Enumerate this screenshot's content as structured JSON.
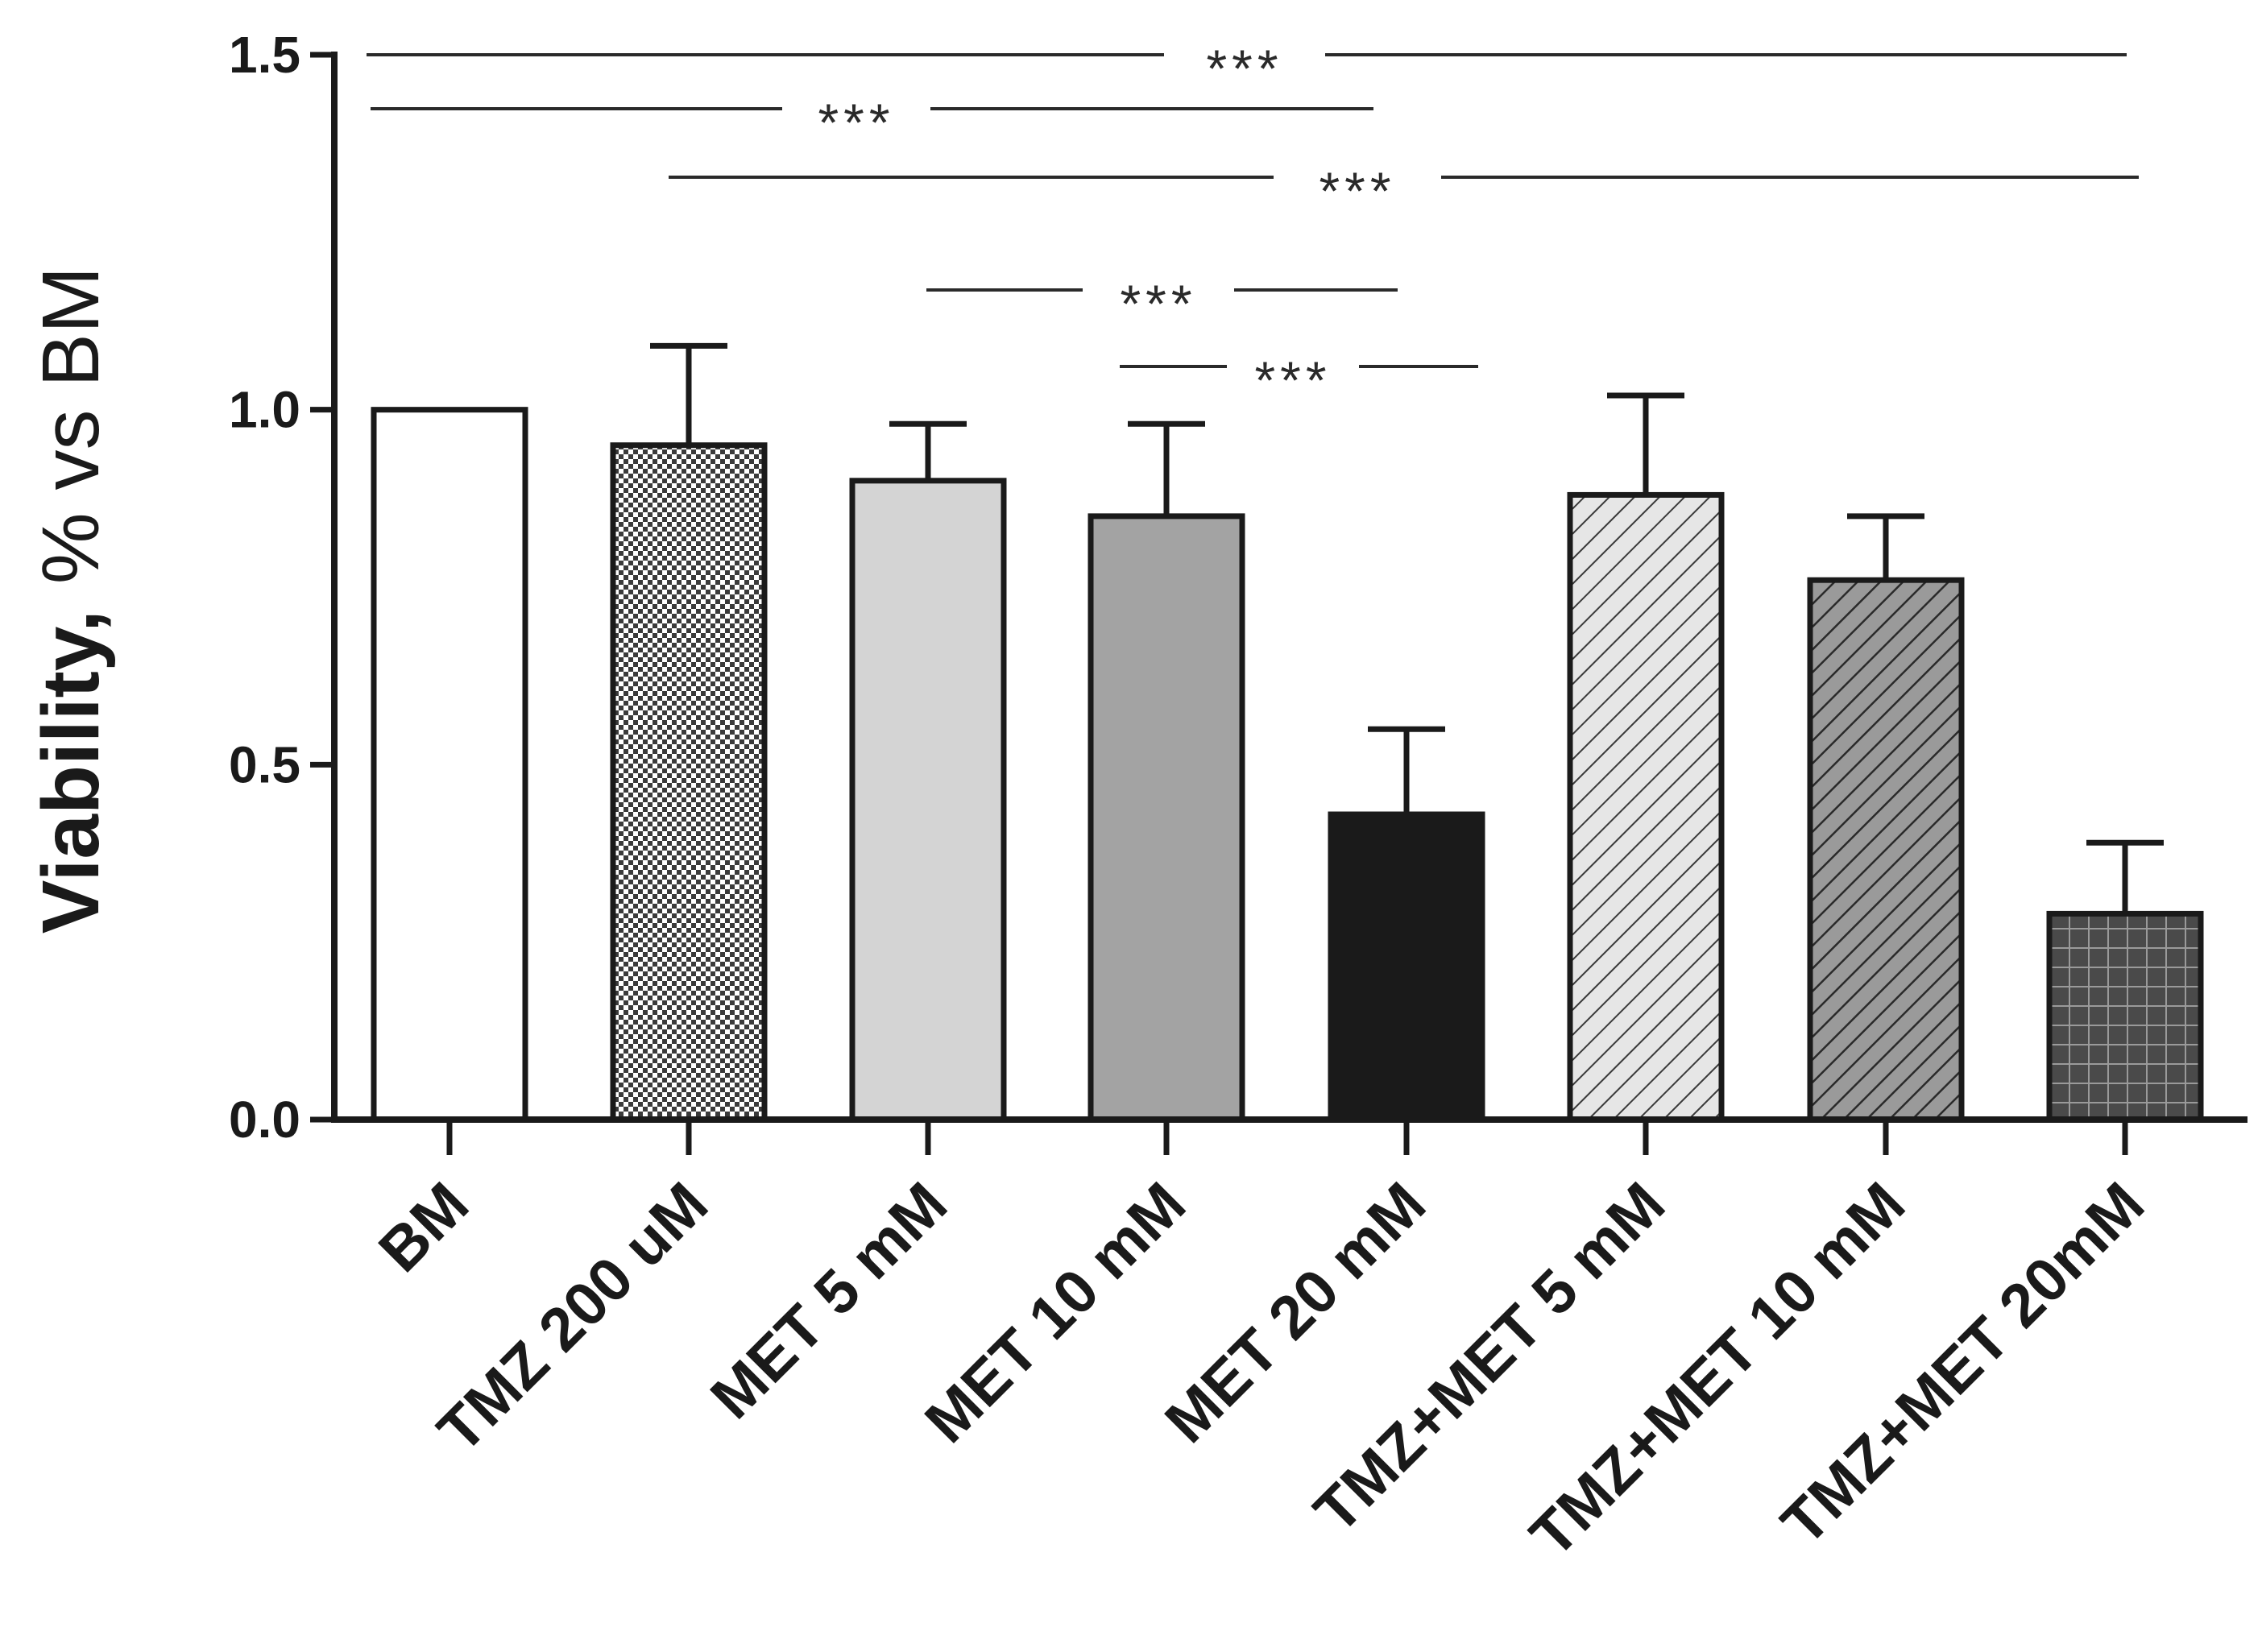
{
  "chart_data": {
    "type": "bar",
    "title": "",
    "xlabel": "",
    "ylabel": "Viability, % vs BM",
    "ylabel_parts": [
      "Viability,",
      "% vs BM"
    ],
    "ylim": [
      0,
      1.5
    ],
    "yticks": [
      0.0,
      0.5,
      1.0,
      1.5
    ],
    "ytick_labels": [
      "0.0",
      "0.5",
      "1.0",
      "1.5"
    ],
    "categories": [
      "BM",
      "TMZ 200 uM",
      "MET 5 mM",
      "MET 10 mM",
      "MET 20 mM",
      "TMZ+MET 5 mM",
      "TMZ+MET 10 mM",
      "TMZ+MET 20mM"
    ],
    "values": [
      1.0,
      0.95,
      0.9,
      0.85,
      0.43,
      0.88,
      0.76,
      0.29
    ],
    "error_upper": [
      0.0,
      0.14,
      0.08,
      0.13,
      0.12,
      0.14,
      0.09,
      0.1
    ],
    "fills": [
      "white",
      "checker",
      "light-gray",
      "mid-gray",
      "black",
      "hatch-light",
      "hatch-dark",
      "grid"
    ],
    "significance": [
      {
        "from": 0,
        "to": 7,
        "label": "***"
      },
      {
        "from": 0,
        "to": 4,
        "label": "***"
      },
      {
        "from": 1,
        "to": 7,
        "label": "***"
      },
      {
        "from": 2,
        "to": 4,
        "label": "***"
      },
      {
        "from": 3,
        "to": 4,
        "label": "***"
      }
    ],
    "colors": {
      "axis": "#1a1a1a",
      "bar_edge": "#1a1a1a",
      "light_gray": "#d4d4d4",
      "mid_gray": "#a3a3a3",
      "black": "#1a1a1a",
      "white": "#ffffff"
    }
  }
}
